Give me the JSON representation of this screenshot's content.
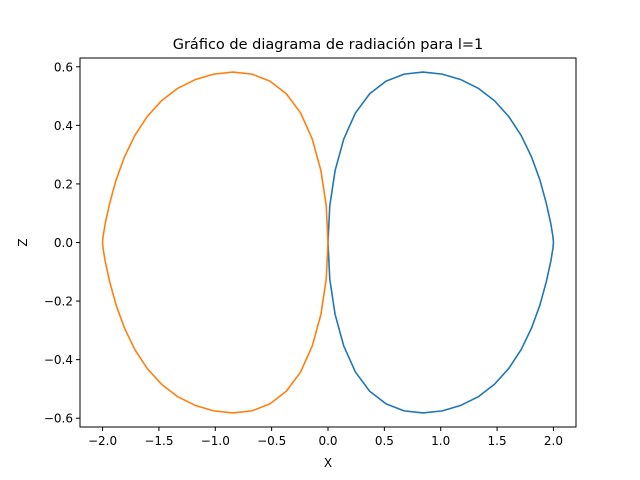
{
  "chart_data": {
    "type": "line",
    "title": "Gráfico de diagrama de radiación para l=1",
    "xlabel": "X",
    "ylabel": "Z",
    "xlim": [
      -2.2,
      2.2
    ],
    "ylim": [
      -0.63,
      0.63
    ],
    "xticks": [
      -2.0,
      -1.5,
      -1.0,
      -0.5,
      0.0,
      0.5,
      1.0,
      1.5,
      2.0
    ],
    "xtick_labels": [
      "−2.0",
      "−1.5",
      "−1.0",
      "−0.5",
      "0.0",
      "0.5",
      "1.0",
      "1.5",
      "2.0"
    ],
    "yticks": [
      -0.6,
      -0.4,
      -0.2,
      0.0,
      0.2,
      0.4,
      0.6
    ],
    "ytick_labels": [
      "−0.6",
      "−0.4",
      "−0.2",
      "0.0",
      "0.2",
      "0.4",
      "0.6"
    ],
    "grid": false,
    "legend": "none",
    "series": [
      {
        "color": "#1f77b4",
        "x": [
          0.0,
          0.0158,
          0.0627,
          0.1393,
          0.2428,
          0.3697,
          0.5156,
          0.6752,
          0.843,
          1.013,
          1.1792,
          1.3357,
          1.477,
          1.6038,
          1.7128,
          1.8058,
          1.8795,
          1.9358,
          1.9762,
          1.9955,
          2.0,
          1.9955,
          1.9762,
          1.9358,
          1.8795,
          1.8058,
          1.7128,
          1.6038,
          1.477,
          1.3357,
          1.1792,
          1.013,
          0.843,
          0.6752,
          0.5156,
          0.3697,
          0.2428,
          0.1393,
          0.0627,
          0.0158,
          0.0
        ],
        "y": [
          0.0,
          0.1256,
          0.2451,
          0.3528,
          0.442,
          0.508,
          0.551,
          0.575,
          0.582,
          0.575,
          0.556,
          0.526,
          0.484,
          0.43,
          0.366,
          0.292,
          0.214,
          0.135,
          0.065,
          0.02,
          0.0,
          -0.02,
          -0.065,
          -0.135,
          -0.214,
          -0.292,
          -0.366,
          -0.43,
          -0.484,
          -0.526,
          -0.556,
          -0.575,
          -0.582,
          -0.575,
          -0.551,
          -0.508,
          -0.442,
          -0.3528,
          -0.2451,
          -0.1256,
          0.0
        ]
      },
      {
        "color": "#ff7f0e",
        "x": [
          0.0,
          -0.0158,
          -0.0627,
          -0.1393,
          -0.2428,
          -0.3697,
          -0.5156,
          -0.6752,
          -0.843,
          -1.013,
          -1.1792,
          -1.3357,
          -1.477,
          -1.6038,
          -1.7128,
          -1.8058,
          -1.8795,
          -1.9358,
          -1.9762,
          -1.9955,
          -2.0,
          -1.9955,
          -1.9762,
          -1.9358,
          -1.8795,
          -1.8058,
          -1.7128,
          -1.6038,
          -1.477,
          -1.3357,
          -1.1792,
          -1.013,
          -0.843,
          -0.6752,
          -0.5156,
          -0.3697,
          -0.2428,
          -0.1393,
          -0.0627,
          -0.0158,
          0.0
        ],
        "y": [
          0.0,
          0.1256,
          0.2451,
          0.3528,
          0.442,
          0.508,
          0.551,
          0.575,
          0.582,
          0.575,
          0.556,
          0.526,
          0.484,
          0.43,
          0.366,
          0.292,
          0.214,
          0.135,
          0.065,
          0.02,
          0.0,
          -0.02,
          -0.065,
          -0.135,
          -0.214,
          -0.292,
          -0.366,
          -0.43,
          -0.484,
          -0.526,
          -0.556,
          -0.575,
          -0.582,
          -0.575,
          -0.551,
          -0.508,
          -0.442,
          -0.3528,
          -0.2451,
          -0.1256,
          0.0
        ]
      }
    ]
  }
}
